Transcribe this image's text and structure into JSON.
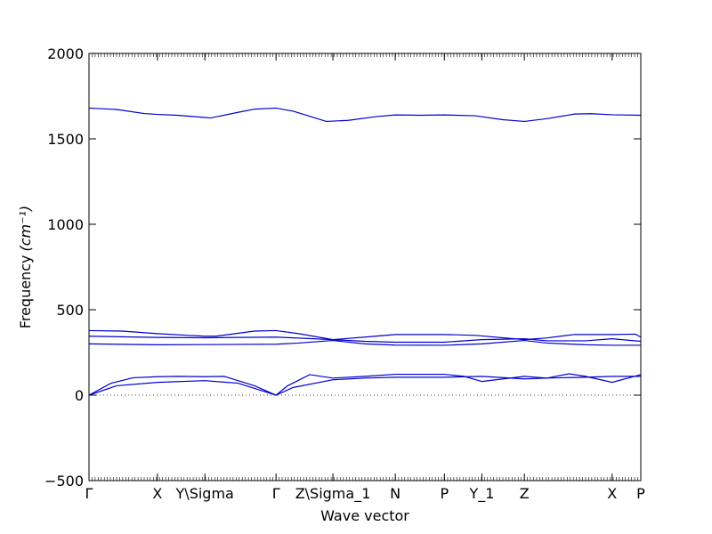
{
  "chart_data": {
    "type": "line",
    "xlabel": "Wave vector",
    "ylabel": "Frequency",
    "ylabel_unit": "(cm⁻¹)",
    "ylim": [
      -500,
      2000
    ],
    "xlim": [
      0,
      1
    ],
    "y_ticks": [
      -500,
      0,
      500,
      1000,
      1500,
      2000
    ],
    "y_tick_labels": [
      "−500",
      "0",
      "500",
      "1000",
      "1500",
      "2000"
    ],
    "x_ticks": [
      {
        "label": "Γ",
        "x": 0.0
      },
      {
        "label": "X",
        "x": 0.124
      },
      {
        "label": "Y\\Sigma",
        "x": 0.21
      },
      {
        "label": "Γ",
        "x": 0.339
      },
      {
        "label": "Z\\Sigma_1",
        "x": 0.442
      },
      {
        "label": "N",
        "x": 0.555
      },
      {
        "label": "P",
        "x": 0.644
      },
      {
        "label": "Y_1",
        "x": 0.712
      },
      {
        "label": "Z",
        "x": 0.789
      },
      {
        "label": "X",
        "x": 0.948
      },
      {
        "label": "P",
        "x": 1.0
      }
    ],
    "zero_line": true,
    "line_color": "#0000cc",
    "series": [
      {
        "values": [
          [
            0,
            1680
          ],
          [
            0.05,
            1672
          ],
          [
            0.1,
            1648
          ],
          [
            0.124,
            1643
          ],
          [
            0.16,
            1638
          ],
          [
            0.21,
            1625
          ],
          [
            0.22,
            1622
          ],
          [
            0.27,
            1655
          ],
          [
            0.3,
            1674
          ],
          [
            0.339,
            1680
          ],
          [
            0.37,
            1662
          ],
          [
            0.43,
            1602
          ],
          [
            0.47,
            1608
          ],
          [
            0.52,
            1630
          ],
          [
            0.555,
            1640
          ],
          [
            0.6,
            1638
          ],
          [
            0.644,
            1640
          ],
          [
            0.7,
            1635
          ],
          [
            0.75,
            1612
          ],
          [
            0.789,
            1602
          ],
          [
            0.83,
            1618
          ],
          [
            0.88,
            1645
          ],
          [
            0.91,
            1647
          ],
          [
            0.948,
            1641
          ],
          [
            1.0,
            1638
          ]
        ]
      },
      {
        "values": [
          [
            0,
            378
          ],
          [
            0.06,
            375
          ],
          [
            0.124,
            360
          ],
          [
            0.18,
            350
          ],
          [
            0.21,
            345
          ],
          [
            0.23,
            345
          ],
          [
            0.3,
            375
          ],
          [
            0.339,
            378
          ],
          [
            0.38,
            360
          ],
          [
            0.442,
            325
          ],
          [
            0.5,
            340
          ],
          [
            0.555,
            355
          ],
          [
            0.644,
            355
          ],
          [
            0.7,
            350
          ],
          [
            0.789,
            325
          ],
          [
            0.83,
            335
          ],
          [
            0.88,
            355
          ],
          [
            0.948,
            355
          ],
          [
            0.99,
            357
          ],
          [
            1.0,
            340
          ]
        ]
      },
      {
        "values": [
          [
            0,
            345
          ],
          [
            0.124,
            338
          ],
          [
            0.21,
            336
          ],
          [
            0.339,
            340
          ],
          [
            0.442,
            325
          ],
          [
            0.5,
            315
          ],
          [
            0.555,
            310
          ],
          [
            0.644,
            310
          ],
          [
            0.712,
            325
          ],
          [
            0.789,
            330
          ],
          [
            0.83,
            318
          ],
          [
            0.9,
            318
          ],
          [
            0.948,
            330
          ],
          [
            1.0,
            315
          ]
        ]
      },
      {
        "values": [
          [
            0,
            300
          ],
          [
            0.124,
            295
          ],
          [
            0.21,
            296
          ],
          [
            0.339,
            298
          ],
          [
            0.38,
            305
          ],
          [
            0.442,
            320
          ],
          [
            0.5,
            300
          ],
          [
            0.555,
            293
          ],
          [
            0.644,
            292
          ],
          [
            0.712,
            300
          ],
          [
            0.789,
            320
          ],
          [
            0.83,
            305
          ],
          [
            0.9,
            295
          ],
          [
            0.948,
            292
          ],
          [
            1.0,
            292
          ]
        ]
      },
      {
        "values": [
          [
            0,
            0
          ],
          [
            0.04,
            70
          ],
          [
            0.08,
            102
          ],
          [
            0.124,
            108
          ],
          [
            0.16,
            110
          ],
          [
            0.21,
            108
          ],
          [
            0.245,
            110
          ],
          [
            0.3,
            55
          ],
          [
            0.339,
            0
          ],
          [
            0.36,
            55
          ],
          [
            0.4,
            120
          ],
          [
            0.442,
            100
          ],
          [
            0.5,
            110
          ],
          [
            0.555,
            122
          ],
          [
            0.644,
            122
          ],
          [
            0.68,
            110
          ],
          [
            0.712,
            80
          ],
          [
            0.789,
            110
          ],
          [
            0.83,
            100
          ],
          [
            0.87,
            125
          ],
          [
            0.9,
            110
          ],
          [
            0.948,
            75
          ],
          [
            1.0,
            120
          ]
        ]
      },
      {
        "values": [
          [
            0,
            0
          ],
          [
            0.05,
            55
          ],
          [
            0.124,
            75
          ],
          [
            0.21,
            85
          ],
          [
            0.27,
            70
          ],
          [
            0.339,
            0
          ],
          [
            0.37,
            45
          ],
          [
            0.442,
            90
          ],
          [
            0.5,
            100
          ],
          [
            0.555,
            105
          ],
          [
            0.644,
            105
          ],
          [
            0.712,
            110
          ],
          [
            0.789,
            95
          ],
          [
            0.83,
            100
          ],
          [
            0.9,
            105
          ],
          [
            0.948,
            110
          ],
          [
            1.0,
            110
          ]
        ]
      }
    ]
  }
}
